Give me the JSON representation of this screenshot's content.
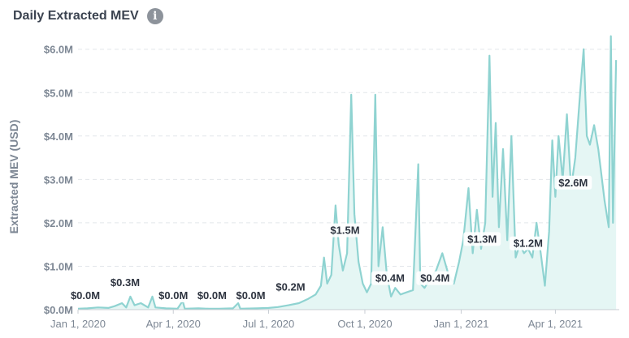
{
  "header": {
    "title": "Daily Extracted MEV",
    "info_icon": "info-icon"
  },
  "colors": {
    "line": "#8fd3d1",
    "fill": "#e5f6f4",
    "grid": "#e2e6ea",
    "axis": "#c8cdd3",
    "label_bg": "#ffffff"
  },
  "chart_data": {
    "type": "area",
    "title": "Daily Extracted MEV",
    "xlabel": "",
    "ylabel": "Extracted MEV (USD)",
    "ylim": [
      0,
      6.2
    ],
    "y_unit": "million USD",
    "y_ticks": [
      0,
      1,
      2,
      3,
      4,
      5,
      6
    ],
    "y_tick_labels": [
      "$0.0M",
      "$1.0M",
      "$2.0M",
      "$3.0M",
      "$4.0M",
      "$5.0M",
      "$6.0M"
    ],
    "x_domain": [
      "2020-01-01",
      "2021-06-01"
    ],
    "x_ticks": [
      "2020-01-01",
      "2020-04-01",
      "2020-07-01",
      "2020-10-01",
      "2021-01-01",
      "2021-04-01"
    ],
    "x_tick_labels": [
      "Jan 1, 2020",
      "Apr 1, 2020",
      "Jul 1, 2020",
      "Oct 1, 2020",
      "Jan 1, 2021",
      "Apr 1, 2021"
    ],
    "grid": true,
    "series": [
      {
        "name": "Daily Extracted MEV",
        "points": [
          [
            "2020-01-01",
            0.02
          ],
          [
            "2020-01-10",
            0.03
          ],
          [
            "2020-01-20",
            0.05
          ],
          [
            "2020-01-30",
            0.04
          ],
          [
            "2020-02-05",
            0.08
          ],
          [
            "2020-02-12",
            0.15
          ],
          [
            "2020-02-16",
            0.05
          ],
          [
            "2020-02-20",
            0.3
          ],
          [
            "2020-02-24",
            0.1
          ],
          [
            "2020-03-01",
            0.15
          ],
          [
            "2020-03-08",
            0.05
          ],
          [
            "2020-03-12",
            0.3
          ],
          [
            "2020-03-15",
            0.05
          ],
          [
            "2020-03-25",
            0.03
          ],
          [
            "2020-04-05",
            0.02
          ],
          [
            "2020-04-10",
            0.2
          ],
          [
            "2020-04-12",
            0.02
          ],
          [
            "2020-04-25",
            0.03
          ],
          [
            "2020-05-05",
            0.02
          ],
          [
            "2020-05-15",
            0.02
          ],
          [
            "2020-05-28",
            0.03
          ],
          [
            "2020-06-02",
            0.15
          ],
          [
            "2020-06-04",
            0.02
          ],
          [
            "2020-06-20",
            0.03
          ],
          [
            "2020-07-01",
            0.04
          ],
          [
            "2020-07-10",
            0.06
          ],
          [
            "2020-07-20",
            0.1
          ],
          [
            "2020-07-30",
            0.15
          ],
          [
            "2020-08-08",
            0.25
          ],
          [
            "2020-08-15",
            0.35
          ],
          [
            "2020-08-20",
            0.55
          ],
          [
            "2020-08-23",
            1.2
          ],
          [
            "2020-08-26",
            0.6
          ],
          [
            "2020-08-30",
            0.8
          ],
          [
            "2020-09-03",
            2.4
          ],
          [
            "2020-09-06",
            1.5
          ],
          [
            "2020-09-10",
            0.9
          ],
          [
            "2020-09-14",
            1.3
          ],
          [
            "2020-09-18",
            4.95
          ],
          [
            "2020-09-21",
            2.2
          ],
          [
            "2020-09-25",
            1.1
          ],
          [
            "2020-09-29",
            0.6
          ],
          [
            "2020-10-03",
            0.4
          ],
          [
            "2020-10-07",
            0.6
          ],
          [
            "2020-10-11",
            4.95
          ],
          [
            "2020-10-14",
            1.0
          ],
          [
            "2020-10-18",
            1.9
          ],
          [
            "2020-10-22",
            0.8
          ],
          [
            "2020-10-26",
            0.3
          ],
          [
            "2020-10-30",
            0.5
          ],
          [
            "2020-11-04",
            0.35
          ],
          [
            "2020-11-10",
            0.4
          ],
          [
            "2020-11-16",
            0.45
          ],
          [
            "2020-11-21",
            3.35
          ],
          [
            "2020-11-23",
            0.6
          ],
          [
            "2020-11-27",
            0.5
          ],
          [
            "2020-12-02",
            0.7
          ],
          [
            "2020-12-08",
            0.9
          ],
          [
            "2020-12-14",
            1.3
          ],
          [
            "2020-12-20",
            0.8
          ],
          [
            "2020-12-25",
            0.6
          ],
          [
            "2020-12-30",
            1.1
          ],
          [
            "2021-01-03",
            1.6
          ],
          [
            "2021-01-08",
            2.8
          ],
          [
            "2021-01-12",
            1.3
          ],
          [
            "2021-01-16",
            2.3
          ],
          [
            "2021-01-20",
            1.4
          ],
          [
            "2021-01-24",
            2.0
          ],
          [
            "2021-01-28",
            5.85
          ],
          [
            "2021-01-31",
            2.6
          ],
          [
            "2021-02-03",
            4.3
          ],
          [
            "2021-02-06",
            1.9
          ],
          [
            "2021-02-10",
            3.7
          ],
          [
            "2021-02-14",
            1.6
          ],
          [
            "2021-02-18",
            4.0
          ],
          [
            "2021-02-22",
            1.2
          ],
          [
            "2021-02-26",
            1.5
          ],
          [
            "2021-03-02",
            1.3
          ],
          [
            "2021-03-06",
            1.4
          ],
          [
            "2021-03-10",
            1.2
          ],
          [
            "2021-03-14",
            2.0
          ],
          [
            "2021-03-18",
            1.3
          ],
          [
            "2021-03-22",
            0.55
          ],
          [
            "2021-03-26",
            1.8
          ],
          [
            "2021-03-29",
            3.9
          ],
          [
            "2021-04-01",
            2.6
          ],
          [
            "2021-04-04",
            4.0
          ],
          [
            "2021-04-08",
            3.0
          ],
          [
            "2021-04-12",
            4.5
          ],
          [
            "2021-04-16",
            2.8
          ],
          [
            "2021-04-20",
            3.5
          ],
          [
            "2021-04-25",
            5.1
          ],
          [
            "2021-04-28",
            6.0
          ],
          [
            "2021-05-01",
            4.0
          ],
          [
            "2021-05-04",
            3.8
          ],
          [
            "2021-05-08",
            4.25
          ],
          [
            "2021-05-12",
            3.7
          ],
          [
            "2021-05-18",
            2.5
          ],
          [
            "2021-05-22",
            1.9
          ],
          [
            "2021-05-24",
            6.3
          ],
          [
            "2021-05-26",
            2.0
          ],
          [
            "2021-05-29",
            5.75
          ]
        ]
      }
    ],
    "annotations": [
      {
        "date": "2020-01-08",
        "value": 0.0,
        "text": "$0.0M"
      },
      {
        "date": "2020-02-15",
        "value": 0.3,
        "text": "$0.3M"
      },
      {
        "date": "2020-04-01",
        "value": 0.0,
        "text": "$0.0M"
      },
      {
        "date": "2020-05-08",
        "value": 0.0,
        "text": "$0.0M"
      },
      {
        "date": "2020-06-14",
        "value": 0.0,
        "text": "$0.0M"
      },
      {
        "date": "2020-07-22",
        "value": 0.2,
        "text": "$0.2M"
      },
      {
        "date": "2020-09-12",
        "value": 1.5,
        "text": "$1.5M"
      },
      {
        "date": "2020-10-25",
        "value": 0.4,
        "text": "$0.4M"
      },
      {
        "date": "2020-12-07",
        "value": 0.4,
        "text": "$0.4M"
      },
      {
        "date": "2021-01-21",
        "value": 1.3,
        "text": "$1.3M"
      },
      {
        "date": "2021-03-06",
        "value": 1.2,
        "text": "$1.2M"
      },
      {
        "date": "2021-04-18",
        "value": 2.6,
        "text": "$2.6M"
      }
    ]
  }
}
